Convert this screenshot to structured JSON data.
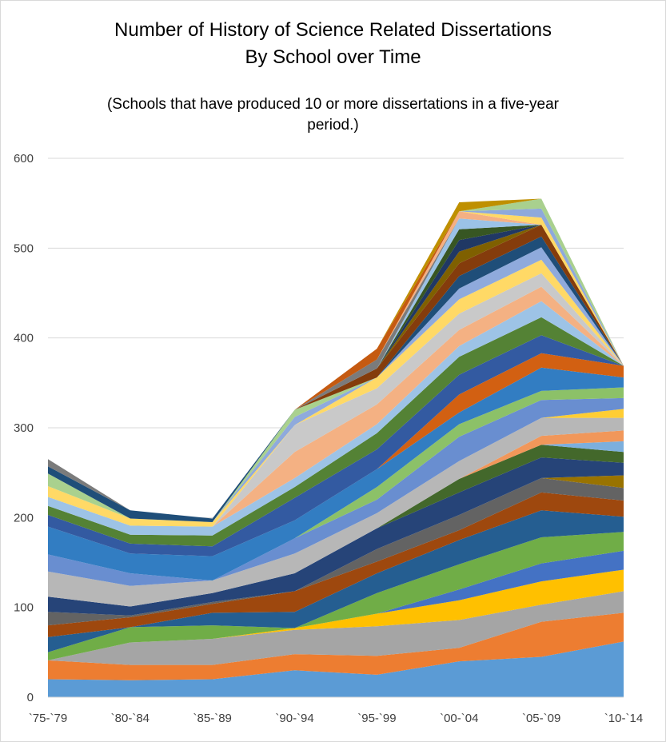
{
  "chart_data": {
    "type": "area",
    "stacked": true,
    "title": "Number of History of Science Related Dissertations",
    "title_line2": "By School over Time",
    "subtitle": "(Schools that have produced 10 or more dissertations in a five-year period.)",
    "xlabel": "",
    "ylabel": "",
    "categories": [
      "`75-`79",
      "`80-`84",
      "`85-`89",
      "`90-`94",
      "`95-`99",
      "`00-`04",
      "`05-`09",
      "`10-`14"
    ],
    "ylim": [
      0,
      600
    ],
    "yticks": [
      0,
      100,
      200,
      300,
      400,
      500,
      600
    ],
    "grid": true,
    "legend": "none",
    "series": [
      {
        "color": "#5b9bd5",
        "values": [
          20,
          19,
          20,
          30,
          25,
          40,
          45,
          62
        ]
      },
      {
        "color": "#ed7d31",
        "values": [
          21,
          17,
          16,
          18,
          21,
          15,
          39,
          32
        ]
      },
      {
        "color": "#a5a5a5",
        "values": [
          0,
          25,
          29,
          27,
          33,
          31,
          19,
          24
        ]
      },
      {
        "color": "#ffc000",
        "values": [
          0,
          0,
          0,
          2,
          14,
          22,
          26,
          24
        ]
      },
      {
        "color": "#4472c4",
        "values": [
          0,
          0,
          0,
          0,
          0,
          12,
          20,
          21
        ]
      },
      {
        "color": "#70ad47",
        "values": [
          9,
          17,
          15,
          0,
          23,
          28,
          29,
          21
        ]
      },
      {
        "color": "#255e91",
        "values": [
          17,
          0,
          14,
          18,
          22,
          27,
          30,
          17
        ]
      },
      {
        "color": "#9e480e",
        "values": [
          13,
          11,
          10,
          23,
          13,
          11,
          20,
          18
        ]
      },
      {
        "color": "#636363",
        "values": [
          15,
          2,
          2,
          0,
          14,
          17,
          16,
          14
        ]
      },
      {
        "color": "#997300",
        "values": [
          0,
          0,
          0,
          0,
          0,
          0,
          0,
          14
        ]
      },
      {
        "color": "#264478",
        "values": [
          17,
          10,
          10,
          20,
          23,
          25,
          23,
          14
        ]
      },
      {
        "color": "#43682b",
        "values": [
          0,
          0,
          0,
          0,
          0,
          15,
          14,
          12
        ]
      },
      {
        "color": "#7cafdd",
        "values": [
          0,
          0,
          0,
          0,
          0,
          0,
          0,
          12
        ]
      },
      {
        "color": "#f1975a",
        "values": [
          0,
          0,
          0,
          0,
          0,
          0,
          10,
          12
        ]
      },
      {
        "color": "#b7b7b7",
        "values": [
          28,
          23,
          14,
          22,
          17,
          20,
          20,
          14
        ]
      },
      {
        "color": "#ffcd33",
        "values": [
          0,
          0,
          0,
          0,
          0,
          0,
          0,
          10
        ]
      },
      {
        "color": "#698ed0",
        "values": [
          19,
          14,
          0,
          17,
          15,
          27,
          20,
          12
        ]
      },
      {
        "color": "#8cc168",
        "values": [
          0,
          0,
          0,
          0,
          14,
          14,
          10,
          12
        ]
      },
      {
        "color": "#327dc2",
        "values": [
          31,
          22,
          27,
          20,
          20,
          13,
          26,
          11
        ]
      },
      {
        "color": "#d26012",
        "values": [
          0,
          0,
          0,
          0,
          0,
          20,
          16,
          13
        ]
      },
      {
        "color": "#335aa1",
        "values": [
          13,
          11,
          11,
          25,
          22,
          22,
          20,
          0
        ]
      },
      {
        "color": "#548235",
        "values": [
          10,
          10,
          12,
          12,
          18,
          20,
          20,
          0
        ]
      },
      {
        "color": "#9dc3e6",
        "values": [
          10,
          10,
          10,
          10,
          10,
          12,
          18,
          0
        ]
      },
      {
        "color": "#f4b183",
        "values": [
          0,
          0,
          0,
          29,
          22,
          18,
          16,
          0
        ]
      },
      {
        "color": "#c9c9c9",
        "values": [
          0,
          0,
          0,
          30,
          18,
          18,
          15,
          0
        ]
      },
      {
        "color": "#ffd966",
        "values": [
          12,
          8,
          5,
          0,
          12,
          16,
          15,
          0
        ]
      },
      {
        "color": "#8faadc",
        "values": [
          0,
          0,
          0,
          9,
          0,
          12,
          14,
          0
        ]
      },
      {
        "color": "#a9d18e",
        "values": [
          14,
          0,
          0,
          8,
          0,
          0,
          0,
          0
        ]
      },
      {
        "color": "#1f4e79",
        "values": [
          8,
          9,
          4,
          0,
          0,
          14,
          12,
          0
        ]
      },
      {
        "color": "#843c0c",
        "values": [
          0,
          0,
          0,
          0,
          10,
          14,
          13,
          0
        ]
      },
      {
        "color": "#7f6000",
        "values": [
          0,
          0,
          0,
          0,
          0,
          13,
          0,
          0
        ]
      },
      {
        "color": "#203864",
        "values": [
          0,
          0,
          0,
          0,
          0,
          13,
          0,
          0
        ]
      },
      {
        "color": "#375623",
        "values": [
          0,
          0,
          0,
          0,
          0,
          12,
          0,
          0
        ]
      },
      {
        "color": "#9bc2e6",
        "values": [
          0,
          0,
          0,
          0,
          0,
          12,
          0,
          0
        ]
      },
      {
        "color": "#7b7b7b",
        "values": [
          8,
          0,
          0,
          0,
          10,
          0,
          0,
          0
        ]
      },
      {
        "color": "#f4b084",
        "values": [
          0,
          0,
          0,
          0,
          0,
          8,
          0,
          0
        ]
      },
      {
        "color": "#ffd966",
        "values": [
          0,
          0,
          0,
          0,
          0,
          0,
          8,
          0
        ]
      },
      {
        "color": "#8ea9db",
        "values": [
          0,
          0,
          0,
          0,
          0,
          0,
          10,
          0
        ]
      },
      {
        "color": "#a9d08e",
        "values": [
          0,
          0,
          0,
          0,
          0,
          0,
          11,
          0
        ]
      },
      {
        "color": "#c55a11",
        "values": [
          0,
          0,
          0,
          0,
          12,
          0,
          0,
          0
        ]
      },
      {
        "color": "#bf9000",
        "values": [
          0,
          0,
          0,
          0,
          0,
          10,
          0,
          0
        ]
      }
    ]
  }
}
